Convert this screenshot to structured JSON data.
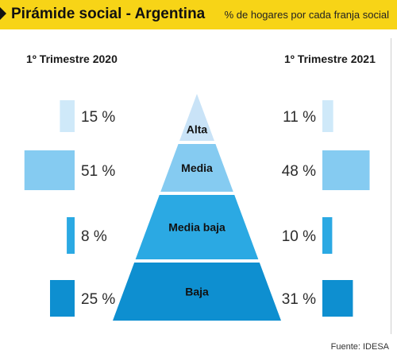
{
  "header": {
    "title": "Pirámide social - Argentina",
    "subtitle": "% de hogares por cada franja social"
  },
  "source": "Fuente: IDESA",
  "chart_data": {
    "type": "bar",
    "categories": [
      "Alta",
      "Media",
      "Media baja",
      "Baja"
    ],
    "series": [
      {
        "name": "1º Trimestre 2020",
        "values": [
          15,
          51,
          8,
          25
        ],
        "labels": [
          "15 %",
          "51 %",
          "8 %",
          "25 %"
        ]
      },
      {
        "name": "1º Trimestre 2021",
        "values": [
          11,
          48,
          10,
          31
        ],
        "labels": [
          "11 %",
          "48 %",
          "10 %",
          "31 %"
        ]
      }
    ],
    "unit": "%",
    "colors": {
      "Alta": "#cfe9f9",
      "Media": "#85cbf1",
      "Media baja": "#2ba9e3",
      "Baja": "#0e8fd0"
    },
    "pyramid_color": "#c9e3f7",
    "legend": "none",
    "grid": false
  }
}
